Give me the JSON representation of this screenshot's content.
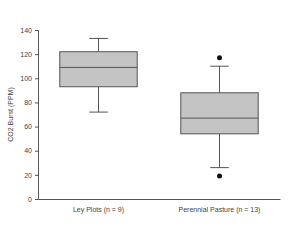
{
  "chart_data": {
    "type": "box",
    "ylabel": "CO2 Burst (PPM)",
    "categories": [
      "Ley Plots (n = 9)",
      "Perennial Pasture (n = 13)"
    ],
    "values": [
      {
        "min": 72,
        "q1": 93,
        "median": 109,
        "q3": 122,
        "max": 133,
        "outliers": []
      },
      {
        "min": 26,
        "q1": 54,
        "median": 67,
        "q3": 88,
        "max": 110,
        "outliers": [
          117,
          19
        ]
      }
    ],
    "color": "#c4c4c4",
    "ylim": [
      0,
      140
    ],
    "yticks": [
      0,
      20,
      40,
      60,
      80,
      100,
      120,
      140
    ],
    "grid": false
  }
}
